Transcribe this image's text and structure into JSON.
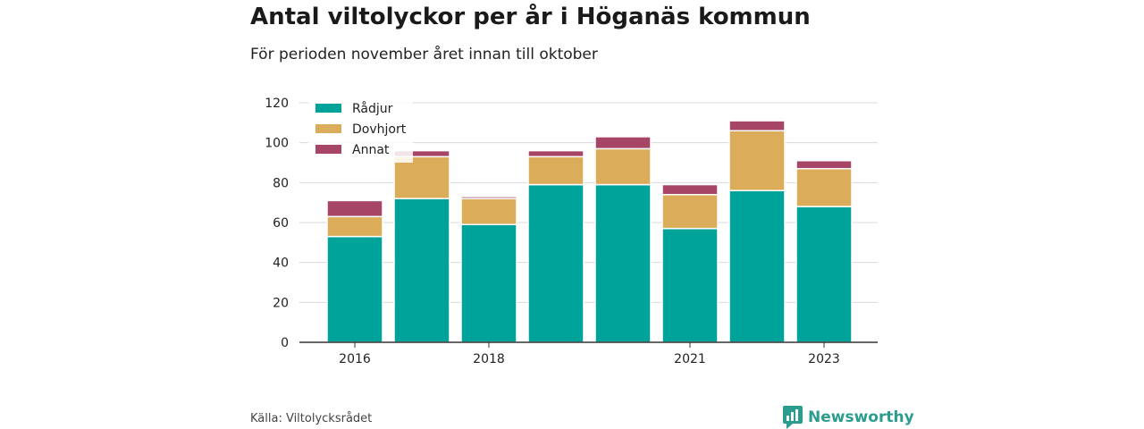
{
  "header": {
    "title": "Antal viltolyckor per år i Höganäs kommun",
    "subtitle": "För perioden november året innan till oktober"
  },
  "footer": {
    "source": "Källa: Viltolycksrådet",
    "brand": "Newsworthy"
  },
  "chart_data": {
    "type": "bar",
    "stacked": true,
    "categories": [
      "2016",
      "2017",
      "2018",
      "2019",
      "2020",
      "2021",
      "2022",
      "2023"
    ],
    "x_tick_labels": [
      "2016",
      "",
      "2018",
      "",
      "",
      "2021",
      "",
      "2023"
    ],
    "series": [
      {
        "name": "Rådjur",
        "color": "#00a39a",
        "values": [
          53,
          72,
          59,
          79,
          79,
          57,
          76,
          68
        ]
      },
      {
        "name": "Dovhjort",
        "color": "#dbad5a",
        "values": [
          10,
          21,
          13,
          14,
          18,
          17,
          30,
          19
        ]
      },
      {
        "name": "Annat",
        "color": "#a64566",
        "values": [
          8,
          3,
          1,
          3,
          6,
          5,
          5,
          4
        ]
      }
    ],
    "ylim": [
      0,
      120
    ],
    "yticks": [
      0,
      20,
      40,
      60,
      80,
      100,
      120
    ],
    "grid": true,
    "legend": "top-left"
  }
}
